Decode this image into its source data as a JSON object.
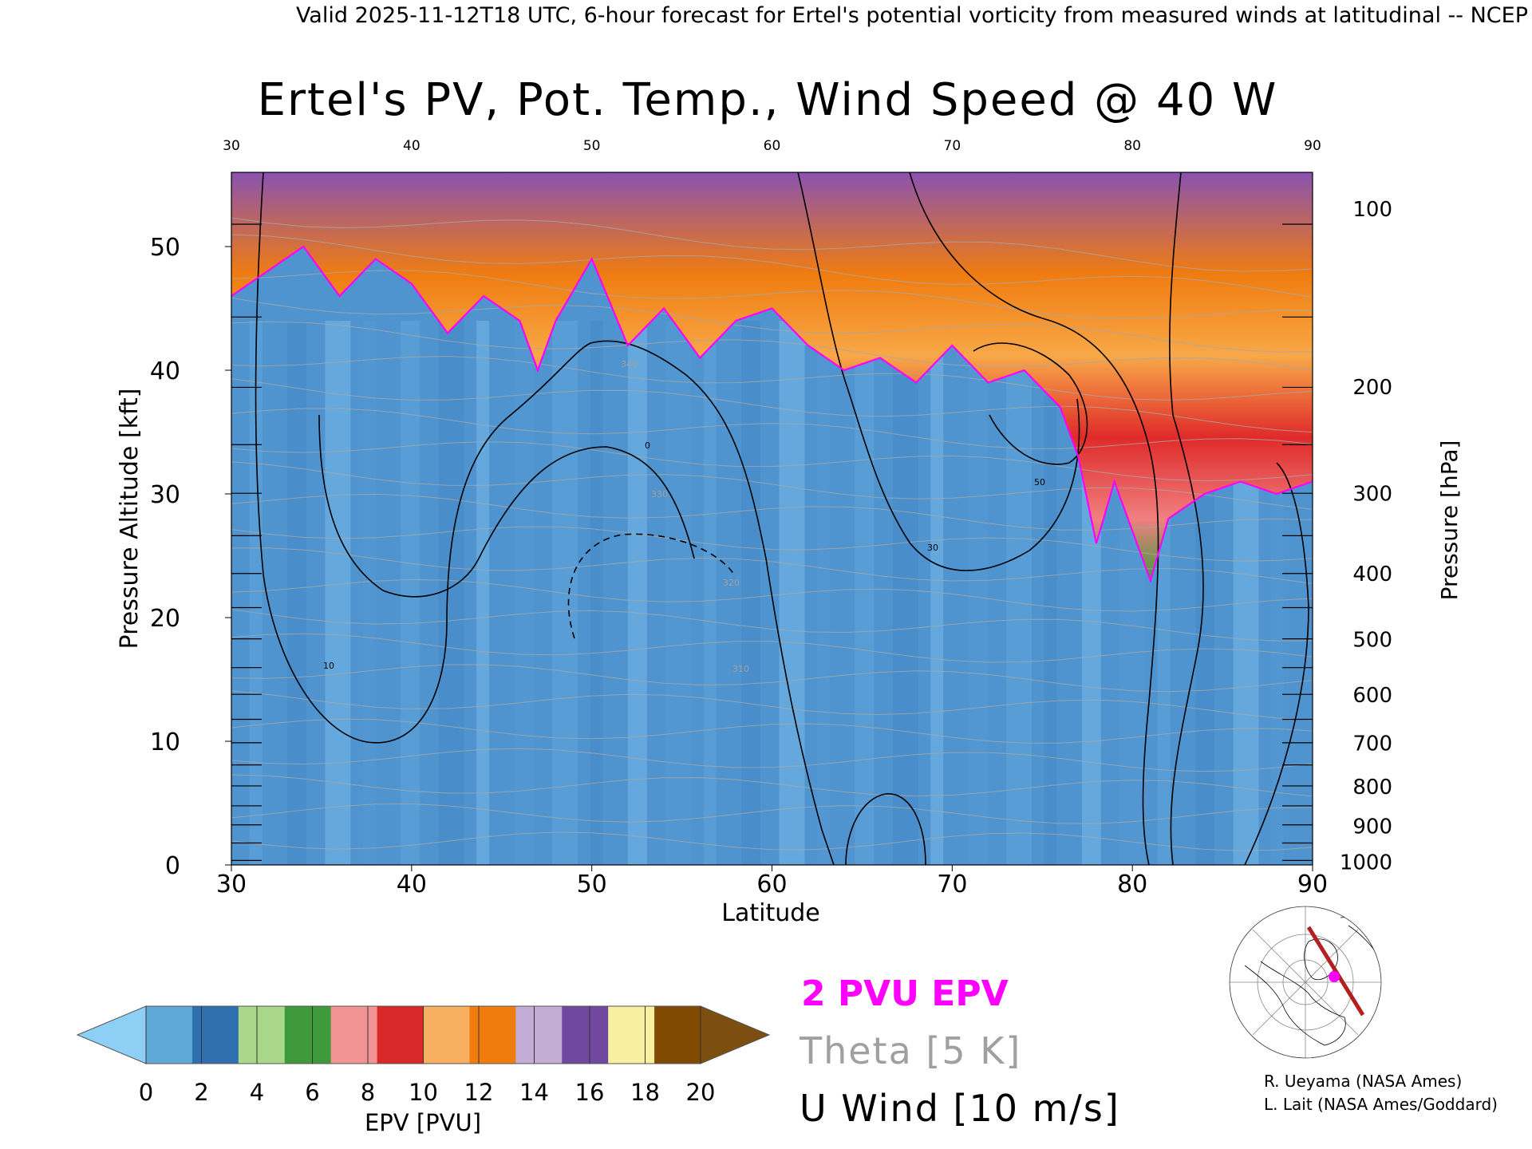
{
  "header": {
    "valid_line": "Valid 2025-11-12T18 UTC, 6-hour forecast for Ertel's potential vorticity from measured winds at latitudinal -- NCEP"
  },
  "chart_data": {
    "type": "heatmap",
    "title": "Ertel's PV, Pot. Temp., Wind Speed @ 40 W",
    "xlabel": "Latitude",
    "ylabel_left": "Pressure Altitude [kft]",
    "ylabel_right": "Pressure [hPa]",
    "xlim": [
      30,
      90
    ],
    "ylim_kft": [
      0,
      56
    ],
    "x_ticks": [
      30,
      40,
      50,
      60,
      70,
      80,
      90
    ],
    "y_ticks_kft": [
      0,
      10,
      20,
      30,
      40,
      50
    ],
    "pressure_ticks": [
      {
        "hPa": 100,
        "kft": 53.1
      },
      {
        "hPa": 200,
        "kft": 38.7
      },
      {
        "hPa": 300,
        "kft": 30.1
      },
      {
        "hPa": 400,
        "kft": 23.6
      },
      {
        "hPa": 500,
        "kft": 18.3
      },
      {
        "hPa": 600,
        "kft": 13.8
      },
      {
        "hPa": 700,
        "kft": 9.9
      },
      {
        "hPa": 800,
        "kft": 6.4
      },
      {
        "hPa": 900,
        "kft": 3.2
      },
      {
        "hPa": 1000,
        "kft": 0.3
      }
    ],
    "epv_colorbar": {
      "label": "EPV [PVU]",
      "ticks": [
        0,
        2,
        4,
        6,
        8,
        10,
        12,
        14,
        16,
        18,
        20
      ],
      "colors": [
        "#5fa9d6",
        "#2e6fb0",
        "#a9d88a",
        "#3e9a3a",
        "#f39494",
        "#d82828",
        "#f8b060",
        "#f07c10",
        "#c3acd6",
        "#7048a0",
        "#f8f0a0",
        "#804a00"
      ],
      "under_color": "#8ecff5",
      "over_color": "#7c4e10"
    },
    "tropopause_2pvu_kft": {
      "lat": [
        30,
        32,
        34,
        36,
        38,
        40,
        42,
        44,
        46,
        47,
        48,
        50,
        52,
        54,
        56,
        58,
        60,
        62,
        64,
        66,
        68,
        70,
        72,
        74,
        76,
        77,
        78,
        79,
        80,
        81,
        82,
        83,
        84,
        86,
        88,
        90
      ],
      "kft": [
        46,
        48,
        50,
        46,
        49,
        47,
        43,
        46,
        44,
        40,
        44,
        49,
        42,
        45,
        41,
        44,
        45,
        42,
        40,
        41,
        39,
        42,
        39,
        40,
        37,
        33,
        26,
        31,
        27,
        23,
        28,
        29,
        30,
        31,
        30,
        31
      ]
    },
    "u_wind_labels": [
      "0",
      "10",
      "30",
      "50"
    ],
    "theta_labels": [
      "310",
      "320",
      "330",
      "340"
    ],
    "legend": {
      "epv_line": "2 PVU EPV",
      "theta": "Theta [5 K]",
      "u_wind": "U Wind [10 m/s]",
      "epv_color": "#ff00ff",
      "theta_color": "#a0a0a0"
    }
  },
  "credits": {
    "line1": "R. Ueyama (NASA Ames)",
    "line2": "L. Lait (NASA Ames/Goddard)"
  }
}
